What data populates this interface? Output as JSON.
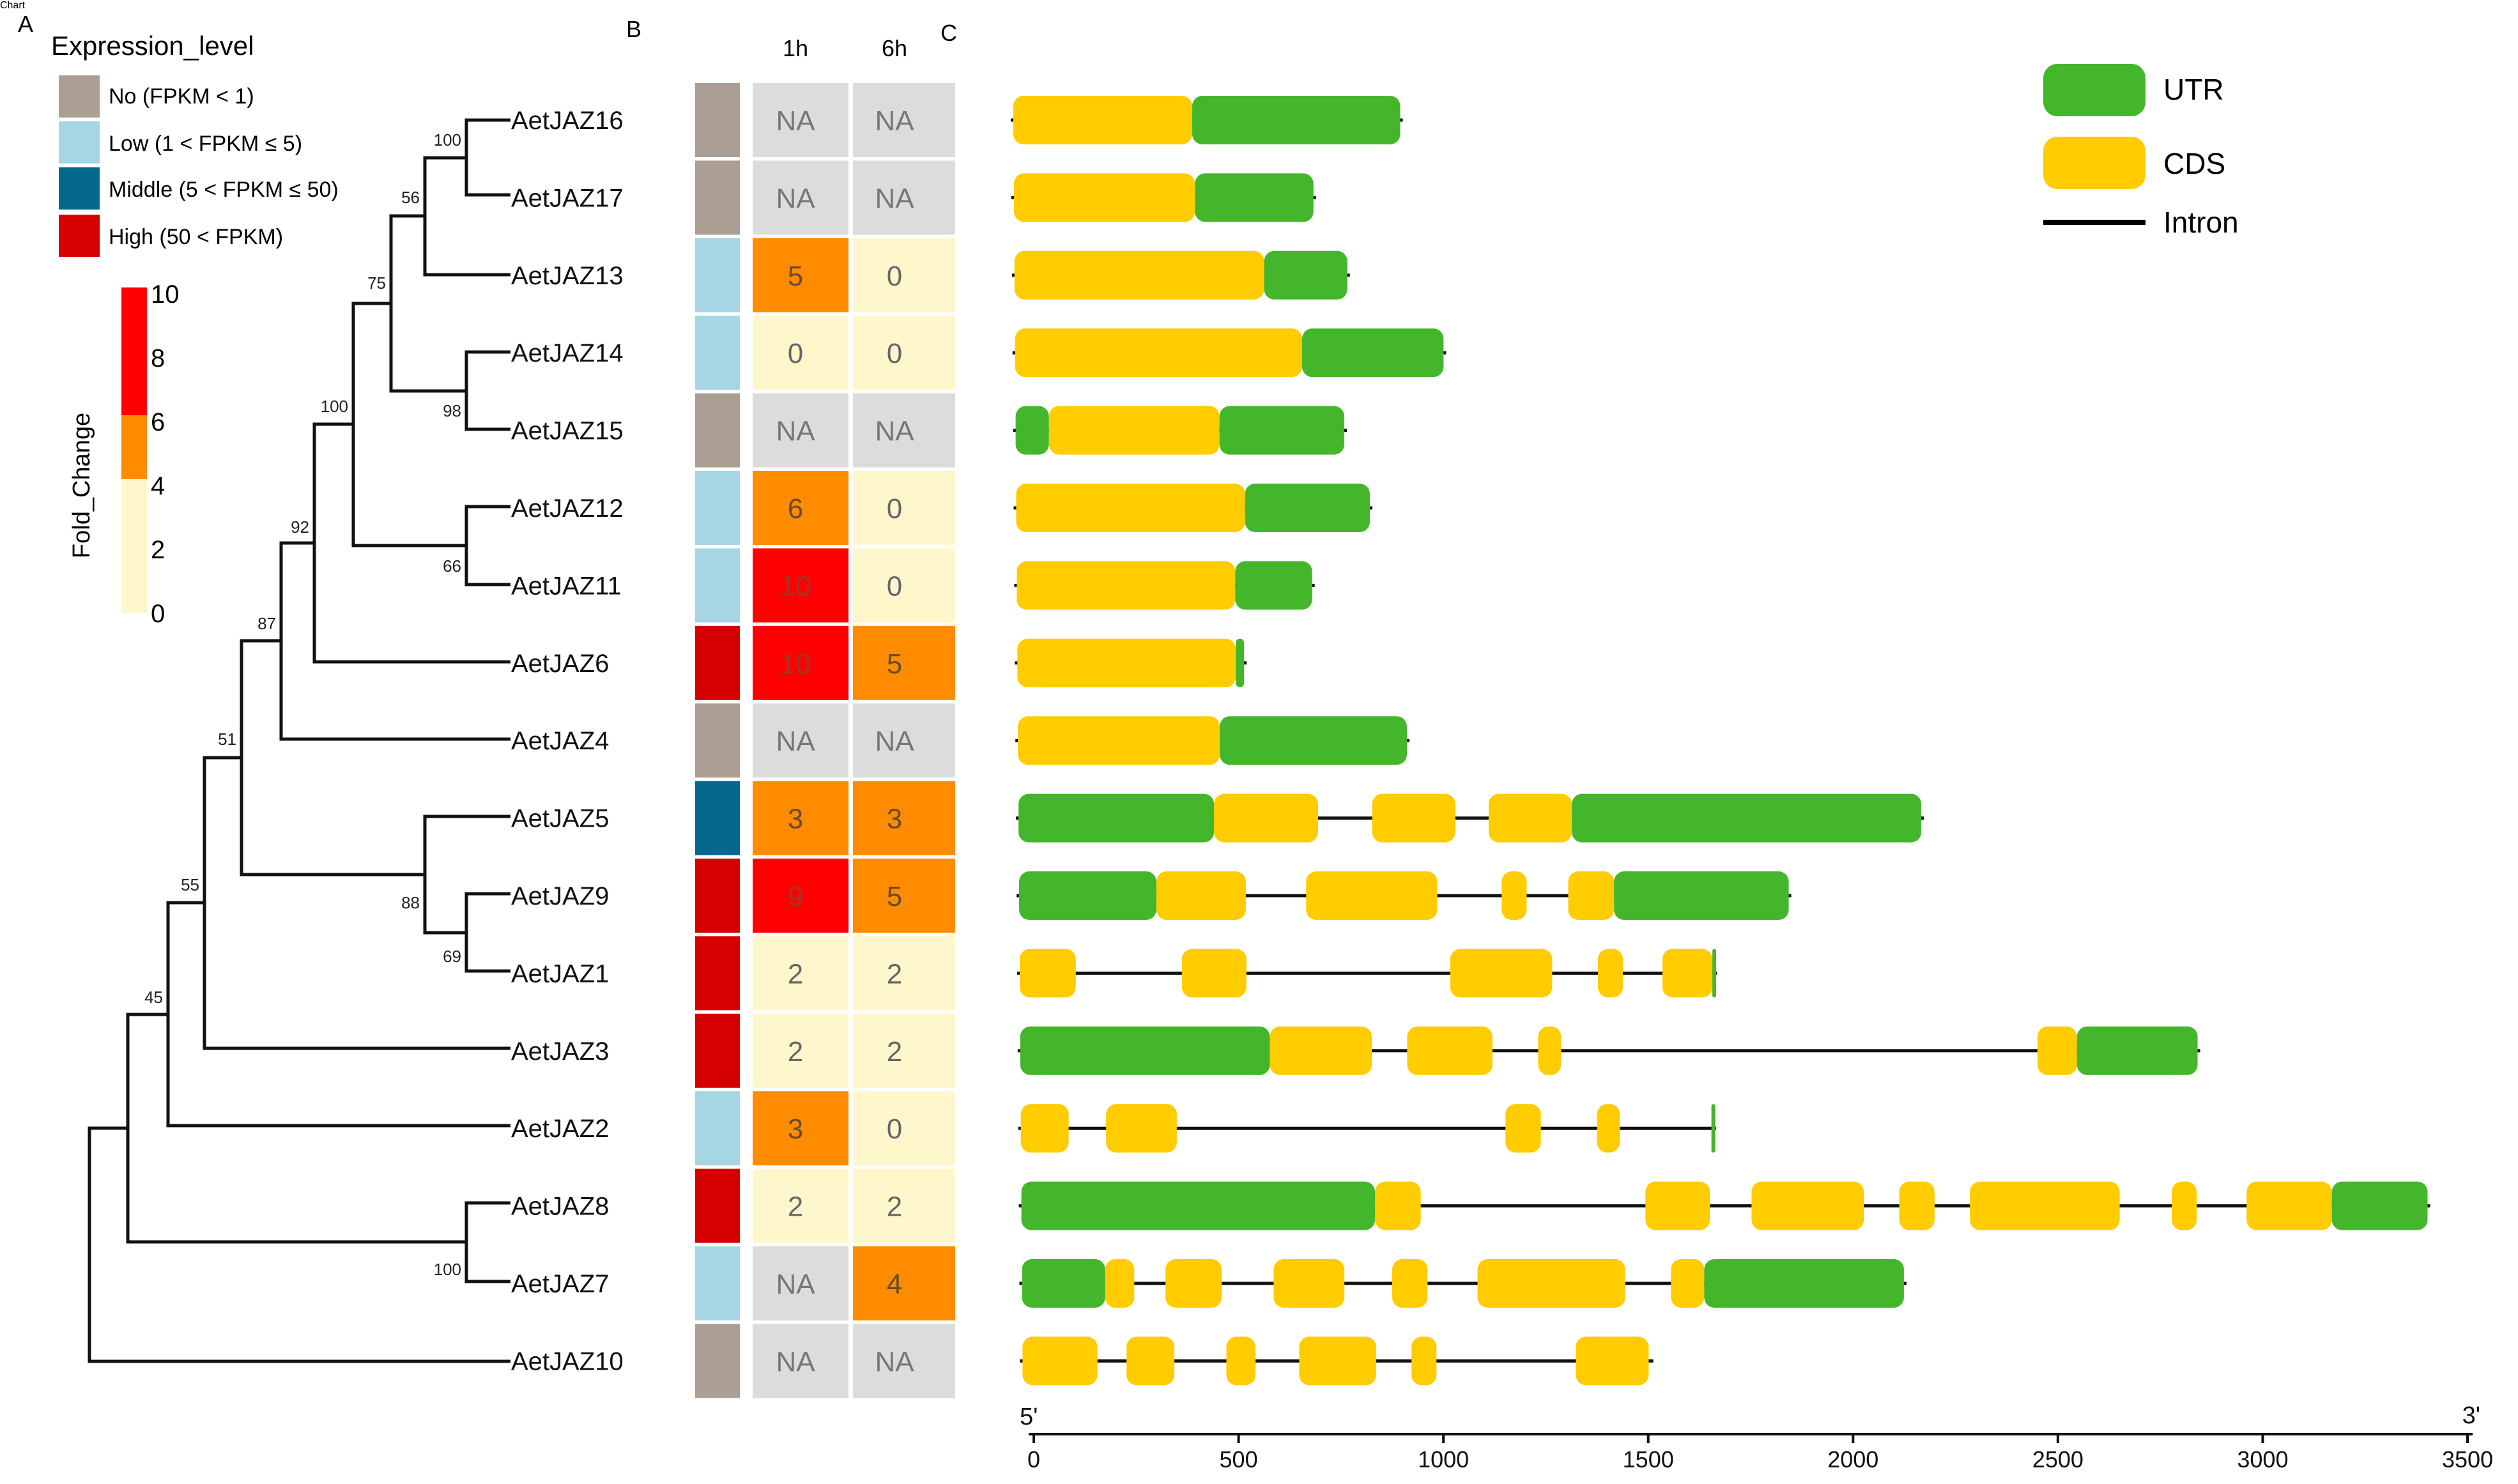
{
  "panel_labels": {
    "a": "A",
    "b": "B",
    "c": "C"
  },
  "legend": {
    "expression_title": "Expression_level",
    "expression_items": [
      {
        "label": "No (FPKM < 1)",
        "color": "#aa9e95"
      },
      {
        "label": "Low (1 < FPKM ≤ 5)",
        "color": "#a6d5e3"
      },
      {
        "label": "Middle (5 < FPKM ≤ 50)",
        "color": "#05688f"
      },
      {
        "label": "High (50 < FPKM)",
        "color": "#d70000"
      }
    ],
    "fold_change_title": "Fold_Change",
    "fold_change_ticks": [
      "10",
      "8",
      "6",
      "4",
      "2",
      "0"
    ],
    "fold_change_colors": {
      "high": "#ff0000",
      "mid": "#ff8c00",
      "low": "#fff7cc"
    },
    "structure_items": [
      {
        "label": "UTR",
        "color": "#44b62c"
      },
      {
        "label": "CDS",
        "color": "#ffcc00"
      },
      {
        "label": "Intron",
        "color": "#000000"
      }
    ]
  },
  "chart_data": {
    "type": "gene-structure",
    "genes": [
      {
        "name": "AetJAZ16",
        "expression": "No",
        "fc_1h": "NA",
        "fc_6h": "NA",
        "length": 930,
        "segments": [
          {
            "type": "CDS",
            "start": 0,
            "end": 430
          },
          {
            "type": "UTR",
            "start": 430,
            "end": 930
          }
        ]
      },
      {
        "name": "AetJAZ17",
        "expression": "No",
        "fc_1h": "NA",
        "fc_6h": "NA",
        "length": 720,
        "segments": [
          {
            "type": "CDS",
            "start": 0,
            "end": 435
          },
          {
            "type": "UTR",
            "start": 435,
            "end": 720
          }
        ]
      },
      {
        "name": "AetJAZ13",
        "expression": "Low",
        "fc_1h": "5",
        "fc_6h": "0",
        "length": 800,
        "segments": [
          {
            "type": "CDS",
            "start": 0,
            "end": 600
          },
          {
            "type": "UTR",
            "start": 600,
            "end": 800
          }
        ]
      },
      {
        "name": "AetJAZ14",
        "expression": "Low",
        "fc_1h": "0",
        "fc_6h": "0",
        "length": 1030,
        "segments": [
          {
            "type": "CDS",
            "start": 0,
            "end": 690
          },
          {
            "type": "UTR",
            "start": 690,
            "end": 1030
          }
        ]
      },
      {
        "name": "AetJAZ15",
        "expression": "No",
        "fc_1h": "NA",
        "fc_6h": "NA",
        "length": 790,
        "segments": [
          {
            "type": "UTR",
            "start": 0,
            "end": 80
          },
          {
            "type": "CDS",
            "start": 80,
            "end": 490
          },
          {
            "type": "UTR",
            "start": 490,
            "end": 790
          }
        ]
      },
      {
        "name": "AetJAZ12",
        "expression": "Low",
        "fc_1h": "6",
        "fc_6h": "0",
        "length": 850,
        "segments": [
          {
            "type": "CDS",
            "start": 0,
            "end": 550
          },
          {
            "type": "UTR",
            "start": 550,
            "end": 850
          }
        ]
      },
      {
        "name": "AetJAZ11",
        "expression": "Low",
        "fc_1h": "10",
        "fc_6h": "0",
        "length": 710,
        "segments": [
          {
            "type": "CDS",
            "start": 0,
            "end": 525
          },
          {
            "type": "UTR",
            "start": 525,
            "end": 710
          }
        ]
      },
      {
        "name": "AetJAZ6",
        "expression": "High",
        "fc_1h": "10",
        "fc_6h": "5",
        "length": 545,
        "segments": [
          {
            "type": "CDS",
            "start": 0,
            "end": 525
          },
          {
            "type": "UTR",
            "start": 525,
            "end": 545
          }
        ]
      },
      {
        "name": "AetJAZ4",
        "expression": "No",
        "fc_1h": "NA",
        "fc_6h": "NA",
        "length": 935,
        "segments": [
          {
            "type": "CDS",
            "start": 0,
            "end": 485
          },
          {
            "type": "UTR",
            "start": 485,
            "end": 935
          }
        ]
      },
      {
        "name": "AetJAZ5",
        "expression": "Middle",
        "fc_1h": "3",
        "fc_6h": "3",
        "length": 2170,
        "segments": [
          {
            "type": "UTR",
            "start": 0,
            "end": 470
          },
          {
            "type": "CDS",
            "start": 470,
            "end": 720
          },
          {
            "type": "CDS",
            "start": 850,
            "end": 1050
          },
          {
            "type": "CDS",
            "start": 1130,
            "end": 1330
          },
          {
            "type": "UTR",
            "start": 1330,
            "end": 2170
          }
        ]
      },
      {
        "name": "AetJAZ9",
        "expression": "High",
        "fc_1h": "9",
        "fc_6h": "5",
        "length": 1850,
        "segments": [
          {
            "type": "UTR",
            "start": 0,
            "end": 330
          },
          {
            "type": "CDS",
            "start": 330,
            "end": 545
          },
          {
            "type": "CDS",
            "start": 690,
            "end": 1005
          },
          {
            "type": "CDS",
            "start": 1160,
            "end": 1220
          },
          {
            "type": "CDS",
            "start": 1320,
            "end": 1430
          },
          {
            "type": "UTR",
            "start": 1430,
            "end": 1850
          }
        ]
      },
      {
        "name": "AetJAZ1",
        "expression": "High",
        "fc_1h": "2",
        "fc_6h": "2",
        "length": 1670,
        "segments": [
          {
            "type": "CDS",
            "start": 0,
            "end": 135
          },
          {
            "type": "CDS",
            "start": 390,
            "end": 545
          },
          {
            "type": "CDS",
            "start": 1035,
            "end": 1280
          },
          {
            "type": "CDS",
            "start": 1390,
            "end": 1450
          },
          {
            "type": "CDS",
            "start": 1545,
            "end": 1665
          },
          {
            "type": "UTR",
            "start": 1665,
            "end": 1670
          }
        ]
      },
      {
        "name": "AetJAZ3",
        "expression": "High",
        "fc_1h": "2",
        "fc_6h": "2",
        "length": 2830,
        "segments": [
          {
            "type": "UTR",
            "start": 0,
            "end": 600
          },
          {
            "type": "CDS",
            "start": 600,
            "end": 845
          },
          {
            "type": "CDS",
            "start": 930,
            "end": 1135
          },
          {
            "type": "CDS",
            "start": 1245,
            "end": 1300
          },
          {
            "type": "CDS",
            "start": 2445,
            "end": 2540
          },
          {
            "type": "UTR",
            "start": 2540,
            "end": 2830
          }
        ]
      },
      {
        "name": "AetJAZ2",
        "expression": "Low",
        "fc_1h": "3",
        "fc_6h": "0",
        "length": 1665,
        "segments": [
          {
            "type": "CDS",
            "start": 0,
            "end": 115
          },
          {
            "type": "CDS",
            "start": 205,
            "end": 375
          },
          {
            "type": "CDS",
            "start": 1165,
            "end": 1250
          },
          {
            "type": "CDS",
            "start": 1385,
            "end": 1440
          },
          {
            "type": "UTR",
            "start": 1660,
            "end": 1665
          }
        ]
      },
      {
        "name": "AetJAZ8",
        "expression": "High",
        "fc_1h": "2",
        "fc_6h": "2",
        "length": 3380,
        "segments": [
          {
            "type": "UTR",
            "start": 0,
            "end": 850
          },
          {
            "type": "CDS",
            "start": 850,
            "end": 960
          },
          {
            "type": "CDS",
            "start": 1500,
            "end": 1655
          },
          {
            "type": "CDS",
            "start": 1755,
            "end": 2025
          },
          {
            "type": "CDS",
            "start": 2110,
            "end": 2195
          },
          {
            "type": "CDS",
            "start": 2280,
            "end": 2640
          },
          {
            "type": "CDS",
            "start": 2765,
            "end": 2825
          },
          {
            "type": "CDS",
            "start": 2945,
            "end": 3150
          },
          {
            "type": "UTR",
            "start": 3150,
            "end": 3380
          }
        ]
      },
      {
        "name": "AetJAZ7",
        "expression": "Low",
        "fc_1h": "NA",
        "fc_6h": "4",
        "length": 2120,
        "segments": [
          {
            "type": "UTR",
            "start": 0,
            "end": 200
          },
          {
            "type": "CDS",
            "start": 200,
            "end": 270
          },
          {
            "type": "CDS",
            "start": 345,
            "end": 480
          },
          {
            "type": "CDS",
            "start": 605,
            "end": 775
          },
          {
            "type": "CDS",
            "start": 890,
            "end": 975
          },
          {
            "type": "CDS",
            "start": 1095,
            "end": 1450
          },
          {
            "type": "CDS",
            "start": 1560,
            "end": 1640
          },
          {
            "type": "UTR",
            "start": 1640,
            "end": 2120
          }
        ]
      },
      {
        "name": "AetJAZ10",
        "expression": "No",
        "fc_1h": "NA",
        "fc_6h": "NA",
        "length": 1510,
        "segments": [
          {
            "type": "CDS",
            "start": 0,
            "end": 180
          },
          {
            "type": "CDS",
            "start": 250,
            "end": 365
          },
          {
            "type": "CDS",
            "start": 490,
            "end": 560
          },
          {
            "type": "CDS",
            "start": 665,
            "end": 850
          },
          {
            "type": "CDS",
            "start": 935,
            "end": 995
          },
          {
            "type": "CDS",
            "start": 1330,
            "end": 1505
          }
        ]
      }
    ],
    "heatmap_columns": [
      "1h",
      "6h"
    ],
    "x_axis": {
      "range": [
        0,
        3500
      ],
      "ticks": [
        0,
        500,
        1000,
        1500,
        2000,
        2500,
        3000,
        3500
      ],
      "tick_labels": [
        "0",
        "500",
        "1000",
        "1500",
        "2000",
        "2500",
        "3000",
        "3500"
      ],
      "end_labels": {
        "left": "5'",
        "right": "3'"
      }
    },
    "tree": {
      "bootstrap": [
        "100",
        "56",
        "98",
        "75",
        "66",
        "100",
        "92",
        "87",
        "88",
        "69",
        "51",
        "55",
        "45",
        "100"
      ]
    }
  }
}
